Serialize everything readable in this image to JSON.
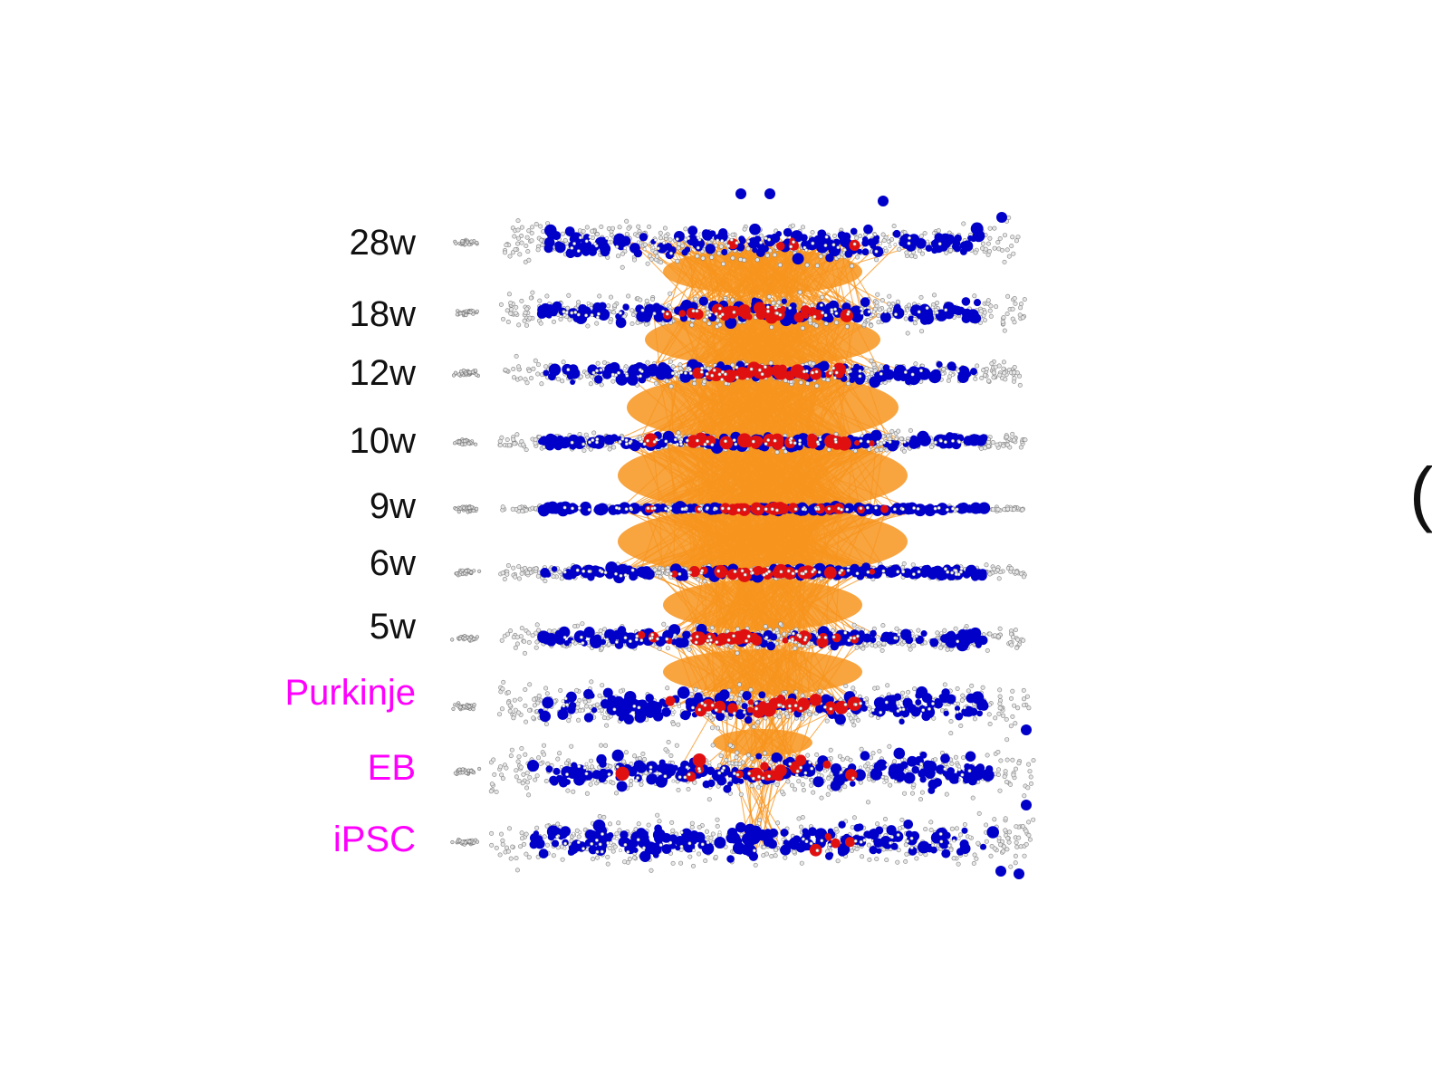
{
  "layers": [
    {
      "label": "28w",
      "kind": "timepoint"
    },
    {
      "label": "18w",
      "kind": "timepoint"
    },
    {
      "label": "12w",
      "kind": "timepoint"
    },
    {
      "label": "10w",
      "kind": "timepoint"
    },
    {
      "label": "9w",
      "kind": "timepoint"
    },
    {
      "label": "6w",
      "kind": "timepoint"
    },
    {
      "label": "5w",
      "kind": "timepoint"
    },
    {
      "label": "Purkinje",
      "kind": "cell-model"
    },
    {
      "label": "EB",
      "kind": "cell-model"
    },
    {
      "label": "iPSC",
      "kind": "cell-model"
    }
  ],
  "colors": {
    "timepoint_label": "#111111",
    "cell_model_label": "#ff00ff",
    "edge": "#f7941d",
    "node_blue": "#0000c8",
    "node_red": "#e01010",
    "node_gray": "#9a9a9a"
  },
  "edge_text": "("
}
